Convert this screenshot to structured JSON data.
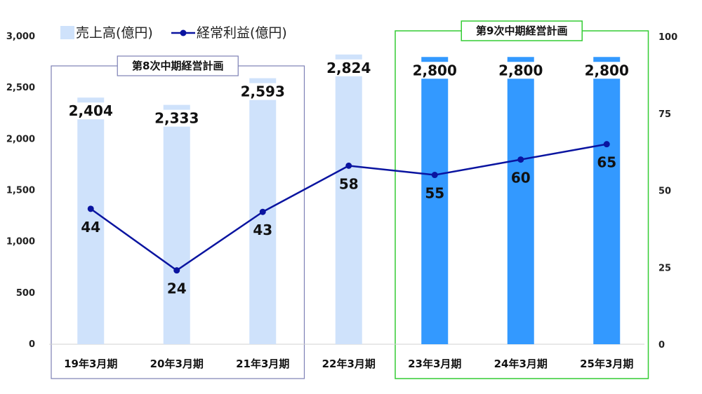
{
  "chart_data": {
    "type": "bar",
    "categories": [
      "19年3月期",
      "20年3月期",
      "21年3月期",
      "22年3月期",
      "23年3月期",
      "24年3月期",
      "25年3月期"
    ],
    "series": [
      {
        "name": "売上高(億円)",
        "type": "bar",
        "axis": "left",
        "values": [
          2404,
          2333,
          2593,
          2824,
          2800,
          2800,
          2800
        ],
        "labels": [
          "2,404",
          "2,333",
          "2,593",
          "2,824",
          "2,800",
          "2,800",
          "2,800"
        ],
        "colors": [
          "#cfe2fb",
          "#cfe2fb",
          "#cfe2fb",
          "#cfe2fb",
          "#3399ff",
          "#3399ff",
          "#3399ff"
        ]
      },
      {
        "name": "経常利益(億円)",
        "type": "line",
        "axis": "right",
        "values": [
          44,
          24,
          43,
          58,
          55,
          60,
          65
        ],
        "labels": [
          "44",
          "24",
          "43",
          "58",
          "55",
          "60",
          "65"
        ],
        "color": "#0a14a0"
      }
    ],
    "left_axis": {
      "ylim": [
        0,
        3000
      ],
      "ticks": [
        0,
        500,
        1000,
        1500,
        2000,
        2500,
        3000
      ],
      "tick_labels": [
        "0",
        "500",
        "1,000",
        "1,500",
        "2,000",
        "2,500",
        "3,000"
      ]
    },
    "right_axis": {
      "ylim": [
        0,
        100
      ],
      "ticks": [
        0,
        25,
        50,
        75,
        100
      ],
      "tick_labels": [
        "0",
        "25",
        "50",
        "75",
        "100"
      ]
    },
    "groups": [
      {
        "label": "第8次中期経営計画",
        "categories": [
          "19年3月期",
          "20年3月期",
          "21年3月期"
        ],
        "color": "#7d80b5"
      },
      {
        "label": "第9次中期経営計画",
        "categories": [
          "23年3月期",
          "24年3月期",
          "25年3月期"
        ],
        "color": "#33cc33"
      }
    ],
    "legend_position": "top-left",
    "grid": false
  }
}
